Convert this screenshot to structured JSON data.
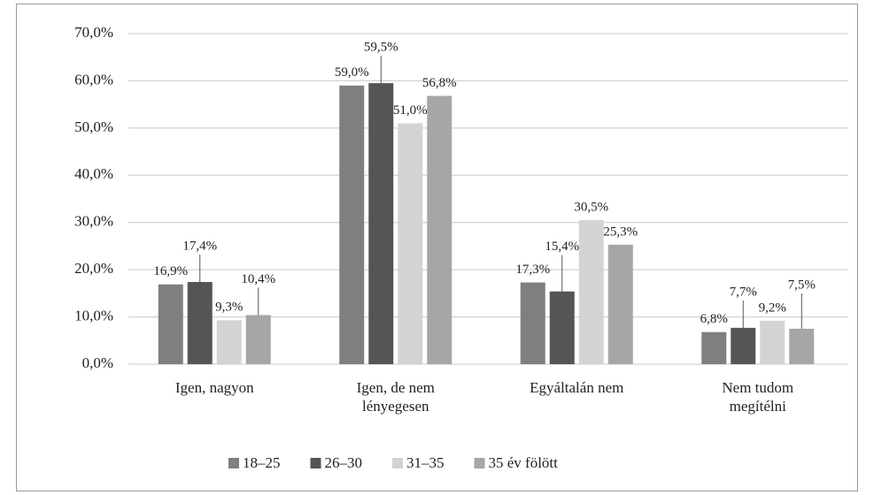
{
  "chart_data": {
    "type": "bar",
    "categories": [
      "Igen, nagyon",
      "Igen, de nem lényegesen",
      "Egyáltalán nem",
      "Nem tudom megítélni"
    ],
    "series": [
      {
        "name": "18–25",
        "color": "#7f7f7f",
        "values": [
          16.9,
          59.0,
          17.3,
          6.8
        ],
        "value_labels": [
          "16,9%",
          "59,0%",
          "17,3%",
          "6,8%"
        ]
      },
      {
        "name": "26–30",
        "color": "#555555",
        "values": [
          17.4,
          59.5,
          15.4,
          7.7
        ],
        "value_labels": [
          "17,4%",
          "59,5%",
          "15,4%",
          "7,7%"
        ]
      },
      {
        "name": "31–35",
        "color": "#d3d3d3",
        "values": [
          9.3,
          51.0,
          30.5,
          9.2
        ],
        "value_labels": [
          "9,3%",
          "51,0%",
          "30,5%",
          "9,2%"
        ]
      },
      {
        "name": "35 év fölött",
        "color": "#a6a6a6",
        "values": [
          10.4,
          56.8,
          25.3,
          7.5
        ],
        "value_labels": [
          "10,4%",
          "56,8%",
          "25,3%",
          "7,5%"
        ]
      }
    ],
    "ylim": [
      0,
      70
    ],
    "yticks": [
      {
        "value": 0,
        "label": "0,0%"
      },
      {
        "value": 10,
        "label": "10,0%"
      },
      {
        "value": 20,
        "label": "20,0%"
      },
      {
        "value": 30,
        "label": "30,0%"
      },
      {
        "value": 40,
        "label": "40,0%"
      },
      {
        "value": 50,
        "label": "50,0%"
      },
      {
        "value": 60,
        "label": "60,0%"
      },
      {
        "value": 70,
        "label": "70,0%"
      }
    ],
    "grid": true,
    "legend": "bottom"
  }
}
